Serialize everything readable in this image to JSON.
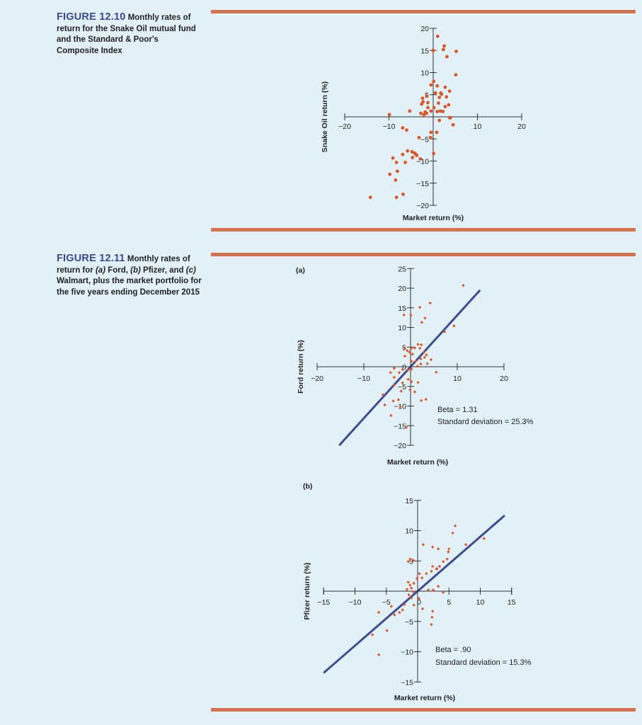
{
  "figures": [
    {
      "number": "FIGURE 12.10",
      "caption": "Monthly rates of return for the Snake Oil mutual fund and the Standard & Poor's Composite Index"
    },
    {
      "number": "FIGURE 12.11",
      "caption_parts": [
        "Monthly rates of return for ",
        "(a)",
        " Ford, ",
        "(b)",
        " Pfizer, and ",
        "(c)",
        " Walmart, plus the market portfolio for the five years ending December 2015"
      ]
    }
  ],
  "colors": {
    "accent": "#d8724c",
    "dots": "#d8582e",
    "line": "#3e4c8f",
    "background": "#e2f1f8",
    "title": "#3b4a8f"
  },
  "chart_data": [
    {
      "id": "snake-oil",
      "type": "scatter",
      "panel_label": "",
      "xlabel": "Market return (%)",
      "ylabel": "Snake Oil return (%)",
      "xlim": [
        -20,
        20
      ],
      "ylim": [
        -20,
        20
      ],
      "xticks": [
        -20,
        -10,
        10,
        20
      ],
      "yticks": [
        20,
        15,
        10,
        5,
        -5,
        -10,
        -15,
        -20
      ],
      "tick_labels_x": [
        "−20",
        "−10",
        "10",
        "20"
      ],
      "tick_labels_y": [
        "20",
        "15",
        "10",
        "5",
        "−5",
        "−10",
        "−15",
        "−20"
      ],
      "points": [
        [
          -14.2,
          -18.2
        ],
        [
          -8.3,
          -18.2
        ],
        [
          -6.8,
          -17.5
        ],
        [
          -8.5,
          -14.3
        ],
        [
          -9.8,
          -13
        ],
        [
          -8.1,
          -12.3
        ],
        [
          -6.3,
          -10.3
        ],
        [
          -8.3,
          -10.3
        ],
        [
          -9.1,
          -9.3
        ],
        [
          -6.9,
          -8.5
        ],
        [
          -3.9,
          -8.5
        ],
        [
          -4.7,
          -9.2
        ],
        [
          -4.2,
          -8.2
        ],
        [
          -3.7,
          -8.7
        ],
        [
          -5.8,
          -7.7
        ],
        [
          -4.8,
          -7.9
        ],
        [
          -2.9,
          -9.5
        ],
        [
          0.1,
          -8.3
        ],
        [
          -0.6,
          -4.7
        ],
        [
          -0.5,
          -3.5
        ],
        [
          0.8,
          -3.5
        ],
        [
          -3.2,
          -4.7
        ],
        [
          -6.0,
          -3.0
        ],
        [
          -6.9,
          -2.5
        ],
        [
          -9.9,
          0.5
        ],
        [
          -5.3,
          1.3
        ],
        [
          -2.8,
          0.8
        ],
        [
          -1.5,
          0.8
        ],
        [
          -2.1,
          0.5
        ],
        [
          -1.8,
          1.1
        ],
        [
          -0.5,
          1.3
        ],
        [
          0.9,
          1.2
        ],
        [
          1.6,
          1.3
        ],
        [
          2.2,
          1.2
        ],
        [
          2.7,
          2.3
        ],
        [
          3.5,
          2.7
        ],
        [
          3.0,
          4.5
        ],
        [
          1.9,
          5.1
        ],
        [
          1.7,
          5.4
        ],
        [
          0.5,
          5.4
        ],
        [
          -1.4,
          4.7
        ],
        [
          -2.4,
          4.2
        ],
        [
          -2.3,
          3.4
        ],
        [
          -2.6,
          2.9
        ],
        [
          -1.2,
          3.2
        ],
        [
          -1.2,
          2.1
        ],
        [
          0.2,
          2.1
        ],
        [
          1.2,
          3.1
        ],
        [
          1.4,
          4.4
        ],
        [
          0.9,
          7.0
        ],
        [
          0.1,
          8.0
        ],
        [
          2.7,
          6.7
        ],
        [
          3.7,
          5.8
        ],
        [
          5.1,
          9.5
        ],
        [
          3.1,
          13.6
        ],
        [
          2.5,
          16.0
        ],
        [
          5.2,
          14.8
        ],
        [
          0.0,
          15.0
        ],
        [
          1.0,
          18.2
        ],
        [
          2.3,
          15.2
        ],
        [
          -0.5,
          7.2
        ],
        [
          1.4,
          -0.8
        ],
        [
          3.9,
          -0.2
        ],
        [
          4.5,
          -1.8
        ],
        [
          3.7,
          -0.2
        ]
      ]
    },
    {
      "id": "ford",
      "type": "scatter",
      "panel_label": "(a)",
      "xlabel": "Market return (%)",
      "ylabel": "Ford return (%)",
      "xlim": [
        -20,
        20
      ],
      "ylim": [
        -20,
        25
      ],
      "xticks": [
        -20,
        -10,
        10,
        20
      ],
      "yticks": [
        25,
        20,
        15,
        10,
        5,
        -5,
        -10,
        -15,
        -20
      ],
      "tick_labels_x": [
        "−20",
        "−10",
        "10",
        "20"
      ],
      "tick_labels_y": [
        "25",
        "20",
        "15",
        "10",
        "5",
        "0",
        "−5",
        "−10",
        "−15",
        "−20"
      ],
      "beta": "Beta = 1.31",
      "std": "Standard deviation = 25.3%",
      "fit_line": {
        "slope": 1.31,
        "intercept": 0.0
      },
      "points": [
        [
          -4.2,
          -12.4
        ],
        [
          -5.5,
          -9.7
        ],
        [
          -5.9,
          -7.1
        ],
        [
          -3.7,
          -8.7
        ],
        [
          -2.6,
          -8.4
        ],
        [
          -2.0,
          -6.2
        ],
        [
          -3.5,
          -4.7
        ],
        [
          -1.7,
          -4.1
        ],
        [
          -0.1,
          -5.9
        ],
        [
          0.9,
          -6.4
        ],
        [
          2.3,
          -8.6
        ],
        [
          3.3,
          -8.3
        ],
        [
          1.6,
          -4.0
        ],
        [
          0.2,
          -3.8
        ],
        [
          -0.5,
          -3.2
        ],
        [
          -3.5,
          -2.7
        ],
        [
          -4.3,
          -1.5
        ],
        [
          -2.4,
          -1.5
        ],
        [
          -1.7,
          -0.7
        ],
        [
          -0.5,
          -0.8
        ],
        [
          0.2,
          -0.6
        ],
        [
          1.5,
          0.1
        ],
        [
          1.1,
          1.4
        ],
        [
          2.2,
          2.0
        ],
        [
          3.0,
          2.4
        ],
        [
          2.2,
          0.7
        ],
        [
          3.6,
          0.8
        ],
        [
          4.4,
          1.8
        ],
        [
          3.4,
          3.0
        ],
        [
          2.9,
          3.7
        ],
        [
          2.0,
          4.7
        ],
        [
          2.3,
          5.6
        ],
        [
          1.6,
          5.7
        ],
        [
          0.4,
          3.2
        ],
        [
          0.2,
          4.7
        ],
        [
          -0.7,
          4.1
        ],
        [
          -1.2,
          4.7
        ],
        [
          -1.2,
          2.7
        ],
        [
          -0.2,
          3.7
        ],
        [
          0.9,
          4.8
        ],
        [
          2.4,
          11.3
        ],
        [
          3.1,
          12.4
        ],
        [
          4.2,
          16.2
        ],
        [
          2.0,
          15.1
        ],
        [
          0.1,
          13.1
        ],
        [
          -1.4,
          13.2
        ],
        [
          7.3,
          8.9
        ],
        [
          9.3,
          10.4
        ],
        [
          11.3,
          20.7
        ],
        [
          -0.9,
          -15.4
        ],
        [
          -2.2,
          -10.2
        ],
        [
          -3.5,
          -0.4
        ],
        [
          0.2,
          1.4
        ],
        [
          5.5,
          -1.4
        ]
      ]
    },
    {
      "id": "pfizer",
      "type": "scatter",
      "panel_label": "(b)",
      "xlabel": "Market return (%)",
      "ylabel": "Pfizer return (%)",
      "xlim": [
        -15,
        15
      ],
      "ylim": [
        -15,
        15
      ],
      "xticks": [
        -15,
        -10,
        -5,
        5,
        10,
        15
      ],
      "yticks": [
        15,
        10,
        5,
        -5,
        -10,
        -15
      ],
      "tick_labels_x": [
        "−15",
        "−10",
        "−5",
        "0",
        "5",
        "10",
        "15"
      ],
      "tick_labels_y": [
        "15",
        "10",
        "5",
        "−5",
        "−10",
        "−15"
      ],
      "beta": "Beta = .90",
      "std": "Standard deviation = 15.3%",
      "fit_line": {
        "slope": 0.9,
        "intercept": 0.0
      },
      "points": [
        [
          -7.2,
          -7.2
        ],
        [
          -6.2,
          -10.5
        ],
        [
          -6.2,
          -3.5
        ],
        [
          -4.9,
          -6.5
        ],
        [
          -4.2,
          -2.5
        ],
        [
          -3.7,
          -3.9
        ],
        [
          -2.9,
          -3.5
        ],
        [
          -2.4,
          -3.1
        ],
        [
          -2.1,
          -2.2
        ],
        [
          -1.0,
          -1.1
        ],
        [
          -1.4,
          -0.6
        ],
        [
          -1.7,
          0.3
        ],
        [
          -1.0,
          0.5
        ],
        [
          -0.7,
          -0.1
        ],
        [
          -1.2,
          1.0
        ],
        [
          -1.5,
          1.5
        ],
        [
          -0.6,
          1.3
        ],
        [
          -0.1,
          2.1
        ],
        [
          0.3,
          2.9
        ],
        [
          0.7,
          2.2
        ],
        [
          1.4,
          2.9
        ],
        [
          2.2,
          3.3
        ],
        [
          2.4,
          4.1
        ],
        [
          3.0,
          3.7
        ],
        [
          3.5,
          4.1
        ],
        [
          4.1,
          4.9
        ],
        [
          4.7,
          5.3
        ],
        [
          4.9,
          6.5
        ],
        [
          5.0,
          7.0
        ],
        [
          5.6,
          9.6
        ],
        [
          6.0,
          10.8
        ],
        [
          7.7,
          7.7
        ],
        [
          10.6,
          8.7
        ],
        [
          3.3,
          7.0
        ],
        [
          2.4,
          7.3
        ],
        [
          0.9,
          7.7
        ],
        [
          3.1,
          3.7
        ],
        [
          -1.5,
          4.9
        ],
        [
          -1.2,
          5.3
        ],
        [
          -0.7,
          5.1
        ],
        [
          1.7,
          0.2
        ],
        [
          2.5,
          0.2
        ],
        [
          3.3,
          0.8
        ],
        [
          4.1,
          -0.2
        ],
        [
          2.4,
          -3.3
        ],
        [
          2.3,
          -4.3
        ],
        [
          2.2,
          -5.5
        ],
        [
          0.8,
          -2.9
        ],
        [
          0.2,
          -1.2
        ],
        [
          -0.6,
          -2.3
        ]
      ]
    }
  ]
}
